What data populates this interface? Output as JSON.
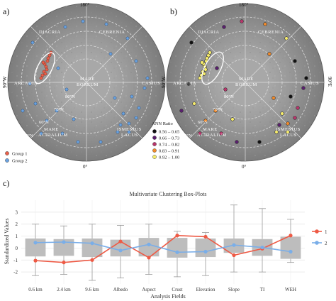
{
  "panels": {
    "a": "a)",
    "b": "b)",
    "c": "c)"
  },
  "map_labels": {
    "top_deg": "180°",
    "bottom_deg": "0°",
    "left_deg": "90°W",
    "right_deg": "90°E",
    "diacria": "DIACRIA",
    "cebrenia": "CEBRENIA",
    "arcadia": "ARCADIA",
    "casius": "CASIUS",
    "mare_boreum_1": "MARE",
    "mare_boreum_2": "BOREUM",
    "mare_acidalium_1": "MARE",
    "mare_acidalium_2": "ACIDALIUM",
    "ismenius_1": "ISMENIUS",
    "ismenius_2": "LACUS",
    "lat80": "80°N",
    "lat70": "70°N",
    "lat60": "60°N",
    "lat50": "50°N"
  },
  "legend_a": {
    "items": [
      {
        "label": "Group 1",
        "color": "#e9604a"
      },
      {
        "label": "Group 2",
        "color": "#6aa2e0"
      }
    ]
  },
  "legend_b": {
    "title": "ANN Ratio",
    "items": [
      {
        "label": "0.56 – 0.65",
        "color": "#111111"
      },
      {
        "label": "0.66 – 0.73",
        "color": "#5a1f6e"
      },
      {
        "label": "0.74 – 0.82",
        "color": "#b8356b"
      },
      {
        "label": "0.83 – 0.91",
        "color": "#f08a2b"
      },
      {
        "label": "0.92 – 1.00",
        "color": "#f6ec6c"
      }
    ]
  },
  "chart_data": {
    "type": "box",
    "title": "Multivariate Clustering Box-Plots",
    "xlabel": "Analysis Fields",
    "ylabel": "Standardized Values",
    "ylim": [
      -3,
      4
    ],
    "yticks": [
      "-2",
      "-1",
      "0",
      "1",
      "2",
      "3"
    ],
    "categories": [
      "0.6 km",
      "2.4 km",
      "9.6 km",
      "Albedo",
      "Aspect",
      "Crust",
      "Elevation",
      "Slope",
      "TI",
      "WEH"
    ],
    "boxes": [
      {
        "whisker_low": -2.3,
        "q1": -0.7,
        "q3": 0.8,
        "whisker_high": 2.0
      },
      {
        "whisker_low": -2.2,
        "q1": -0.65,
        "q3": 0.75,
        "whisker_high": 1.85
      },
      {
        "whisker_low": -2.7,
        "q1": -0.75,
        "q3": 0.8,
        "whisker_high": 2.0
      },
      {
        "whisker_low": -2.5,
        "q1": -0.7,
        "q3": 0.7,
        "whisker_high": 1.9
      },
      {
        "whisker_low": -2.2,
        "q1": -0.7,
        "q3": 0.85,
        "whisker_high": 2.0
      },
      {
        "whisker_low": -2.4,
        "q1": -0.8,
        "q3": 0.85,
        "whisker_high": 1.4
      },
      {
        "whisker_low": -2.3,
        "q1": -0.75,
        "q3": 0.8,
        "whisker_high": 1.3
      },
      {
        "whisker_low": -2.0,
        "q1": -0.4,
        "q3": 0.8,
        "whisker_high": 3.6
      },
      {
        "whisker_low": -2.0,
        "q1": -0.65,
        "q3": 0.75,
        "whisker_high": 3.3
      },
      {
        "whisker_low": -1.2,
        "q1": -0.9,
        "q3": 0.95,
        "whisker_high": 2.4
      }
    ],
    "series": [
      {
        "name": "1",
        "color": "#ee5a45",
        "values": [
          -1.05,
          -1.2,
          -1.0,
          0.55,
          -0.8,
          1.05,
          0.95,
          -0.6,
          -0.05,
          1.05
        ]
      },
      {
        "name": "2",
        "color": "#7aaee8",
        "values": [
          0.45,
          0.5,
          0.4,
          -0.2,
          0.3,
          -0.35,
          -0.3,
          0.25,
          0.05,
          -0.3
        ]
      }
    ],
    "legend_position": "right"
  }
}
